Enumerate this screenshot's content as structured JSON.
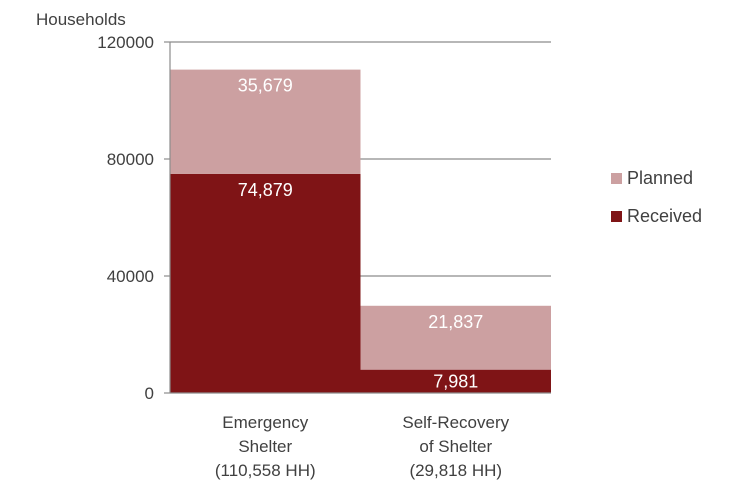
{
  "chart_data": {
    "type": "bar",
    "stacked": true,
    "ylabel": "Households",
    "ylim": [
      0,
      120000
    ],
    "yticks": [
      0,
      40000,
      80000,
      120000
    ],
    "ytick_labels": [
      "0",
      "40000",
      "80000",
      "120000"
    ],
    "grid": true,
    "legend_position": "right",
    "categories": [
      [
        "Emergency",
        "Shelter",
        "(110,558 HH)"
      ],
      [
        "Self-Recovery",
        "of Shelter",
        "(29,818 HH)"
      ]
    ],
    "series": [
      {
        "name": "Received",
        "color": "#7f1416",
        "values": [
          74879,
          7981
        ],
        "labels": [
          "74,879",
          "7,981"
        ]
      },
      {
        "name": "Planned",
        "color": "#cca0a1",
        "values": [
          35679,
          21837
        ],
        "labels": [
          "35,679",
          "21,837"
        ]
      }
    ],
    "legend": [
      "Planned",
      "Received"
    ]
  }
}
